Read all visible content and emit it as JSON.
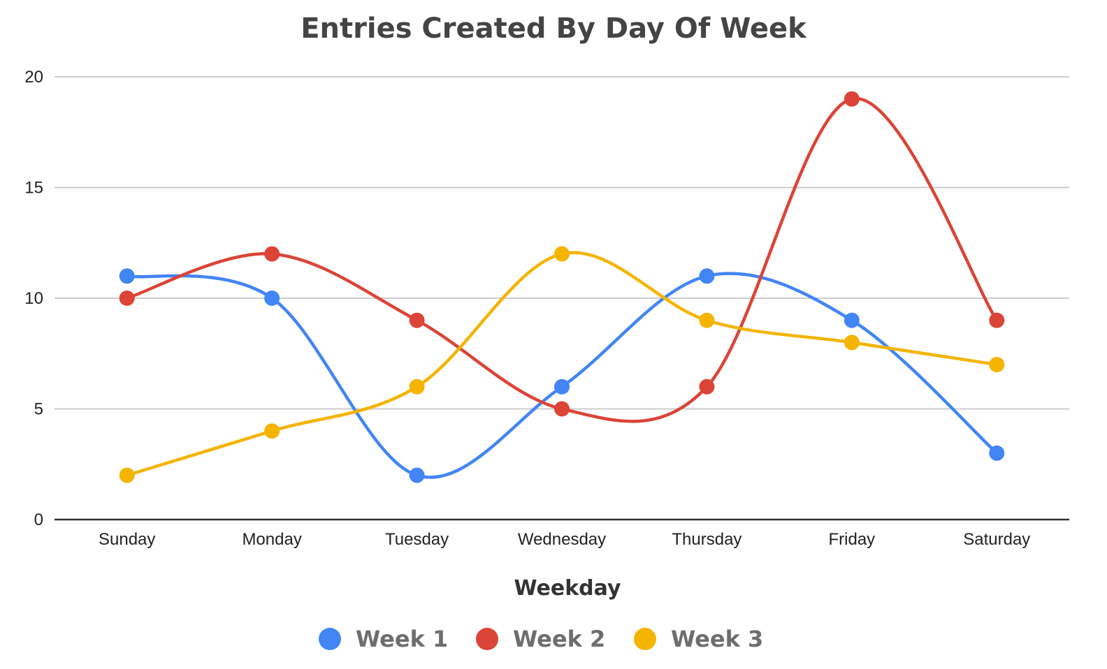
{
  "chart_data": {
    "type": "line",
    "title": "Entries Created By Day Of Week",
    "xlabel": "Weekday",
    "ylabel": "",
    "ylim": [
      0,
      20
    ],
    "yticks": [
      0,
      5,
      10,
      15,
      20
    ],
    "grid": true,
    "smooth": true,
    "legend_position": "bottom",
    "categories": [
      "Sunday",
      "Monday",
      "Tuesday",
      "Wednesday",
      "Thursday",
      "Friday",
      "Saturday"
    ],
    "series": [
      {
        "name": "Week 1",
        "color": "#4285f4",
        "values": [
          11,
          10,
          2,
          6,
          11,
          9,
          3
        ]
      },
      {
        "name": "Week 2",
        "color": "#db4437",
        "values": [
          10,
          12,
          9,
          5,
          6,
          19,
          9
        ]
      },
      {
        "name": "Week 3",
        "color": "#f4b400",
        "values": [
          2,
          4,
          6,
          12,
          9,
          8,
          7
        ]
      }
    ]
  }
}
